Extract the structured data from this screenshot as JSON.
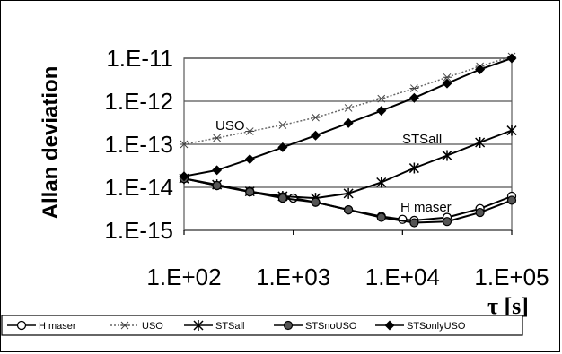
{
  "chart_data": {
    "type": "line",
    "title": "",
    "ylabel": "Allan deviation",
    "xlabel": "τ [s]",
    "xscale": "log",
    "yscale": "log",
    "xlim": [
      100,
      100000
    ],
    "ylim": [
      1e-15,
      1e-11
    ],
    "grid": "horizontal",
    "legend_position": "bottom",
    "x_tick_labels": [
      "1.E+02",
      "1.E+03",
      "1.E+04",
      "1.E+05"
    ],
    "y_tick_labels": [
      "1.E-11",
      "1.E-12",
      "1.E-13",
      "1.E-14",
      "1.E-15"
    ],
    "annotations": [
      "USO",
      "STSall",
      "H maser"
    ],
    "series": [
      {
        "name": "H maser",
        "marker": "open-circle",
        "color": "#000000",
        "x": [
          100,
          200,
          400,
          800,
          1000,
          1600,
          3200,
          6400,
          10000,
          12800,
          25600,
          51200,
          100000
        ],
        "y": [
          1.6e-14,
          1.1e-14,
          8e-15,
          6e-15,
          5.6e-15,
          4.5e-15,
          3e-15,
          2.1e-15,
          1.8e-15,
          1.7e-15,
          2e-15,
          3.2e-15,
          6.2e-15
        ]
      },
      {
        "name": "USO",
        "marker": "small-cross",
        "style": "dotted",
        "color": "#000000",
        "x": [
          100,
          200,
          400,
          800,
          1600,
          3200,
          6400,
          12800,
          25600,
          51200,
          100000
        ],
        "y": [
          1e-13,
          1.4e-13,
          2e-13,
          2.8e-13,
          4.2e-13,
          7e-13,
          1.15e-12,
          2e-12,
          3.6e-12,
          6.5e-12,
          1.1e-11
        ]
      },
      {
        "name": "STSall",
        "marker": "asterisk",
        "color": "#000000",
        "x": [
          100,
          200,
          400,
          800,
          1600,
          3200,
          6400,
          12800,
          25600,
          51200,
          100000
        ],
        "y": [
          1.6e-14,
          1.15e-14,
          8e-15,
          6.2e-15,
          5.6e-15,
          7.2e-15,
          1.3e-14,
          2.8e-14,
          5.5e-14,
          1.1e-13,
          2.1e-13
        ]
      },
      {
        "name": "STSnoUSO",
        "marker": "filled-circle",
        "color": "#000000",
        "x": [
          100,
          200,
          400,
          800,
          1600,
          3200,
          6400,
          12800,
          25600,
          51200,
          100000
        ],
        "y": [
          1.6e-14,
          1.1e-14,
          7.8e-15,
          5.6e-15,
          4.5e-15,
          3e-15,
          2e-15,
          1.5e-15,
          1.6e-15,
          2.6e-15,
          5e-15
        ]
      },
      {
        "name": "STSonlyUSO",
        "marker": "filled-diamond",
        "color": "#000000",
        "x": [
          100,
          200,
          400,
          800,
          1600,
          3200,
          6400,
          12800,
          25600,
          51200,
          100000
        ],
        "y": [
          1.8e-14,
          2.5e-14,
          4.5e-14,
          8.5e-14,
          1.6e-13,
          3.1e-13,
          6e-13,
          1.2e-12,
          2.6e-12,
          5.5e-12,
          1e-11
        ]
      }
    ]
  }
}
